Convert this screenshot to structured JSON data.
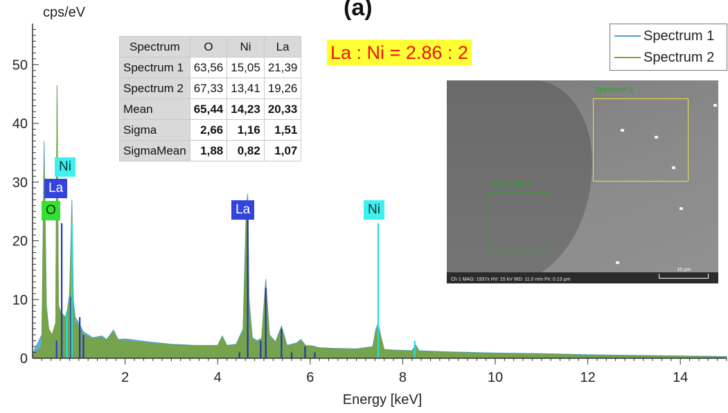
{
  "panel_letter": "(a)",
  "chart_data": {
    "type": "line",
    "ylabel": "cps/eV",
    "xlabel": "Energy [keV]",
    "xlim": [
      0.0,
      15.0
    ],
    "ylim": [
      0,
      57
    ],
    "xticks": [
      2,
      4,
      6,
      8,
      10,
      12,
      14
    ],
    "yticks": [
      0,
      10,
      20,
      30,
      40,
      50
    ],
    "grid": false,
    "legend_position": "top-right",
    "series": [
      {
        "name": "Spectrum 1",
        "color": "#4a9ec9",
        "x": [
          0.0,
          0.2,
          0.25,
          0.3,
          0.35,
          0.42,
          0.5,
          0.53,
          0.56,
          0.6,
          0.7,
          0.75,
          0.8,
          0.85,
          0.88,
          0.92,
          1.0,
          1.1,
          1.3,
          1.5,
          1.6,
          1.75,
          1.85,
          2.0,
          2.5,
          3.0,
          3.5,
          4.0,
          4.1,
          4.2,
          4.4,
          4.55,
          4.62,
          4.65,
          4.68,
          4.75,
          4.85,
          4.95,
          5.04,
          5.12,
          5.25,
          5.38,
          5.5,
          5.7,
          5.8,
          5.9,
          6.05,
          6.2,
          6.5,
          7.0,
          7.35,
          7.42,
          7.47,
          7.52,
          7.6,
          7.8,
          8.2,
          8.28,
          8.35,
          8.6,
          9.0,
          10.0,
          11.0,
          12.0,
          13.0,
          14.0,
          15.0
        ],
        "y": [
          0.8,
          4,
          37,
          9,
          5,
          4,
          6,
          46,
          9,
          8,
          7,
          8,
          11,
          27,
          10,
          7,
          6,
          4.5,
          3.5,
          3.8,
          3.2,
          4.8,
          3.2,
          3.3,
          2.8,
          2.4,
          2.2,
          2.2,
          3.8,
          2.2,
          2.4,
          5,
          26,
          28,
          10,
          3.5,
          3,
          3.4,
          13.5,
          4,
          2.8,
          5.5,
          2.2,
          2.6,
          3.2,
          2.2,
          2.1,
          1.8,
          1.7,
          1.6,
          2,
          5,
          6,
          4,
          1.5,
          1.4,
          1.3,
          2.3,
          1.3,
          1.2,
          1.1,
          0.9,
          0.8,
          0.6,
          0.5,
          0.4,
          0.3
        ]
      },
      {
        "name": "Spectrum 2",
        "color": "#78a23c",
        "x": [
          0.0,
          0.2,
          0.25,
          0.3,
          0.35,
          0.42,
          0.5,
          0.53,
          0.56,
          0.6,
          0.7,
          0.75,
          0.8,
          0.85,
          0.88,
          0.92,
          1.0,
          1.1,
          1.3,
          1.5,
          1.6,
          1.75,
          1.85,
          2.0,
          2.5,
          3.0,
          3.5,
          4.0,
          4.1,
          4.2,
          4.4,
          4.55,
          4.62,
          4.65,
          4.68,
          4.75,
          4.85,
          4.95,
          5.04,
          5.12,
          5.25,
          5.38,
          5.5,
          5.7,
          5.8,
          5.9,
          6.05,
          6.2,
          6.5,
          7.0,
          7.35,
          7.42,
          7.47,
          7.52,
          7.6,
          7.8,
          8.2,
          8.28,
          8.35,
          8.6,
          9.0,
          10.0,
          11.0,
          12.0,
          13.0,
          14.0,
          15.0
        ],
        "y": [
          0.5,
          2,
          33,
          8,
          5,
          4,
          6,
          46.5,
          9,
          8,
          7,
          8,
          10,
          25,
          9,
          6,
          5.5,
          4,
          3.3,
          3.6,
          3,
          4.5,
          3,
          3,
          2.6,
          2.3,
          2.1,
          2.1,
          3.6,
          2.1,
          2.3,
          4.5,
          24,
          27,
          9,
          3.2,
          2.8,
          3.2,
          13,
          3.8,
          2.6,
          5.2,
          2.1,
          2.4,
          3,
          2.1,
          2,
          1.7,
          1.6,
          1.5,
          1.8,
          4.5,
          5.5,
          3.8,
          1.4,
          1.3,
          1.2,
          2,
          1.2,
          1.1,
          1,
          0.8,
          0.7,
          0.5,
          0.4,
          0.3,
          0.2
        ]
      }
    ],
    "element_lines": [
      {
        "element": "O",
        "color": "#2244cc",
        "x": [
          0.52
        ],
        "y": [
          3
        ]
      },
      {
        "element": "La",
        "color": "#2233bb",
        "x": [
          0.63,
          0.83,
          1.02,
          1.1,
          4.47,
          4.65,
          4.93,
          5.04,
          5.38,
          5.6,
          5.89,
          6.1
        ],
        "y": [
          23,
          10.5,
          7,
          4,
          1,
          24,
          3,
          12,
          5,
          1,
          2,
          1
        ]
      },
      {
        "element": "Ni",
        "color": "#22dddd",
        "x": [
          0.74,
          0.85,
          7.47,
          8.26
        ],
        "y": [
          8,
          23,
          23,
          3
        ]
      }
    ],
    "peak_labels": [
      {
        "text": "Ni",
        "bg": "#3ff0f0",
        "fg": "#103030"
      },
      {
        "text": "La",
        "bg": "#3344dd",
        "fg": "#ffffff"
      },
      {
        "text": "O",
        "bg": "#33e033",
        "fg": "#103010"
      },
      {
        "text": "La",
        "bg": "#3344dd",
        "fg": "#ffffff"
      },
      {
        "text": "Ni",
        "bg": "#3ff0f0",
        "fg": "#103030"
      }
    ]
  },
  "table": {
    "headers": [
      "Spectrum",
      "O",
      "Ni",
      "La"
    ],
    "rows": [
      {
        "label": "Spectrum 1",
        "values": [
          "63,56",
          "15,05",
          "21,39"
        ]
      },
      {
        "label": "Spectrum 2",
        "values": [
          "67,33",
          "13,41",
          "19,26"
        ]
      },
      {
        "label": "Mean",
        "values": [
          "65,44",
          "14,23",
          "20,33"
        ]
      },
      {
        "label": "Sigma",
        "values": [
          "2,66",
          "1,16",
          "1,51"
        ]
      },
      {
        "label": "SigmaMean",
        "values": [
          "1,88",
          "0,82",
          "1,07"
        ]
      }
    ]
  },
  "ratio_text": "La : Ni = 2.86 : 2",
  "sem_image": {
    "box1_label": "Spectrum 1",
    "box1_color": "#22aa22",
    "box2_label": "Spectrum 2",
    "box2_color": "#e6e64a",
    "info_text": "Ch 1    MAG: 1937x    HV: 15 kV    WD: 11.0 mm    Px: 0.13 µm",
    "scale_label": "10 µm"
  }
}
